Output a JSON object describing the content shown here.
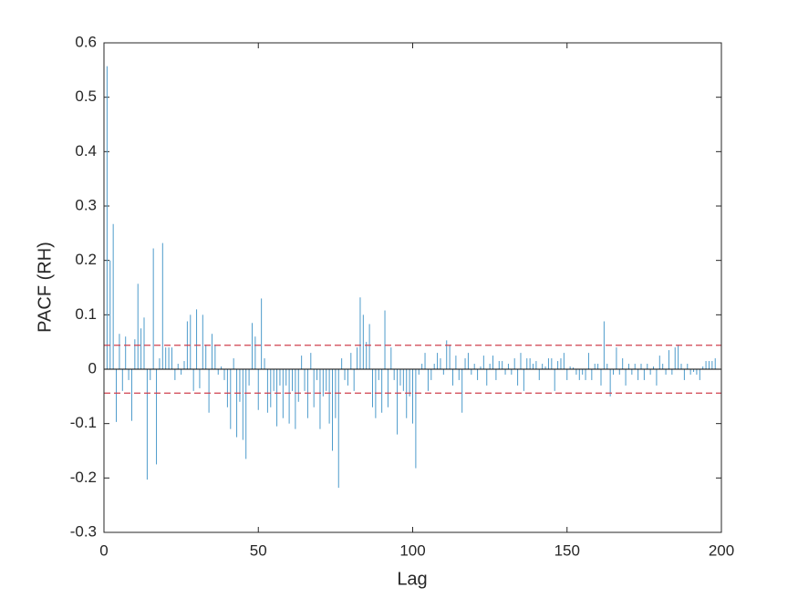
{
  "chart_data": {
    "type": "stem",
    "xlabel": "Lag",
    "ylabel": "PACF (RH)",
    "xlim": [
      0,
      200
    ],
    "xticks": [
      0,
      50,
      100,
      150,
      200
    ],
    "ylim": [
      -0.3,
      0.6
    ],
    "yticks": [
      -0.3,
      -0.2,
      -0.1,
      0,
      0.1,
      0.2,
      0.3,
      0.4,
      0.5,
      0.6
    ],
    "color": "#4d9bcb",
    "bounds": [
      0.044,
      -0.044
    ],
    "bounds_color": "#d0404f",
    "x": [
      1,
      2,
      3,
      4,
      5,
      6,
      7,
      8,
      9,
      10,
      11,
      12,
      13,
      14,
      15,
      16,
      17,
      18,
      19,
      20,
      21,
      22,
      23,
      24,
      25,
      26,
      27,
      28,
      29,
      30,
      31,
      32,
      33,
      34,
      35,
      36,
      37,
      38,
      39,
      40,
      41,
      42,
      43,
      44,
      45,
      46,
      47,
      48,
      49,
      50,
      51,
      52,
      53,
      54,
      55,
      56,
      57,
      58,
      59,
      60,
      61,
      62,
      63,
      64,
      65,
      66,
      67,
      68,
      69,
      70,
      71,
      72,
      73,
      74,
      75,
      76,
      77,
      78,
      79,
      80,
      81,
      82,
      83,
      84,
      85,
      86,
      87,
      88,
      89,
      90,
      91,
      92,
      93,
      94,
      95,
      96,
      97,
      98,
      99,
      100,
      101,
      102,
      103,
      104,
      105,
      106,
      107,
      108,
      109,
      110,
      111,
      112,
      113,
      114,
      115,
      116,
      117,
      118,
      119,
      120,
      121,
      122,
      123,
      124,
      125,
      126,
      127,
      128,
      129,
      130,
      131,
      132,
      133,
      134,
      135,
      136,
      137,
      138,
      139,
      140,
      141,
      142,
      143,
      144,
      145,
      146,
      147,
      148,
      149,
      150,
      151,
      152,
      153,
      154,
      155,
      156,
      157,
      158,
      159,
      160,
      161,
      162,
      163,
      164,
      165,
      166,
      167,
      168,
      169,
      170,
      171,
      172,
      173,
      174,
      175,
      176,
      177,
      178,
      179,
      180,
      181,
      182,
      183,
      184,
      185,
      186,
      187,
      188,
      189,
      190,
      191,
      192,
      193,
      194,
      195,
      196,
      197,
      198
    ],
    "values": [
      0.557,
      0.2,
      0.267,
      -0.097,
      0.065,
      -0.04,
      0.06,
      -0.02,
      -0.095,
      0.055,
      0.157,
      0.075,
      0.095,
      -0.203,
      -0.02,
      0.222,
      -0.175,
      0.02,
      0.232,
      0.04,
      0.04,
      0.04,
      -0.02,
      0.01,
      -0.01,
      0.015,
      0.088,
      0.1,
      -0.04,
      0.11,
      -0.035,
      0.1,
      0.045,
      -0.08,
      0.065,
      0.045,
      -0.01,
      0.005,
      -0.02,
      -0.07,
      -0.11,
      0.02,
      -0.125,
      -0.06,
      -0.13,
      -0.165,
      -0.03,
      0.085,
      0.06,
      -0.075,
      0.13,
      0.02,
      -0.08,
      -0.07,
      -0.04,
      -0.105,
      -0.03,
      -0.09,
      -0.03,
      -0.1,
      -0.04,
      -0.11,
      -0.06,
      0.025,
      -0.04,
      -0.09,
      0.03,
      -0.07,
      -0.02,
      -0.11,
      -0.05,
      -0.04,
      -0.1,
      -0.15,
      -0.09,
      -0.218,
      0.02,
      -0.02,
      -0.03,
      0.03,
      -0.04,
      0.04,
      0.132,
      0.1,
      0.05,
      0.083,
      -0.07,
      -0.09,
      -0.02,
      -0.08,
      0.108,
      -0.07,
      0.04,
      -0.02,
      -0.12,
      -0.03,
      -0.04,
      -0.09,
      -0.05,
      -0.1,
      -0.182,
      -0.01,
      0.01,
      0.03,
      -0.04,
      -0.02,
      0.01,
      0.03,
      0.02,
      -0.01,
      0.053,
      0.045,
      -0.03,
      0.025,
      -0.02,
      -0.08,
      0.02,
      0.03,
      -0.01,
      0.01,
      -0.02,
      0.005,
      0.025,
      -0.03,
      0.01,
      0.025,
      -0.02,
      0.015,
      0.015,
      -0.01,
      0.01,
      -0.01,
      0.02,
      -0.03,
      0.03,
      -0.04,
      0.02,
      0.02,
      0.01,
      0.015,
      -0.02,
      0.01,
      0.005,
      0.02,
      0.02,
      -0.04,
      0.015,
      0.02,
      0.03,
      -0.02,
      0.005,
      0.003,
      -0.01,
      -0.02,
      -0.01,
      -0.02,
      0.03,
      -0.02,
      0.01,
      0.01,
      -0.03,
      0.088,
      0.01,
      -0.05,
      -0.01,
      0.04,
      -0.01,
      0.02,
      -0.03,
      0.01,
      -0.01,
      0.01,
      -0.02,
      0.01,
      -0.02,
      0.01,
      -0.01,
      0.005,
      -0.03,
      0.025,
      0.01,
      -0.01,
      0.035,
      -0.01,
      0.04,
      0.045,
      0.01,
      -0.02,
      0.01,
      -0.01,
      -0.005,
      -0.01,
      -0.02,
      0.005,
      0.015,
      0.015,
      0.015,
      0.02
    ]
  }
}
